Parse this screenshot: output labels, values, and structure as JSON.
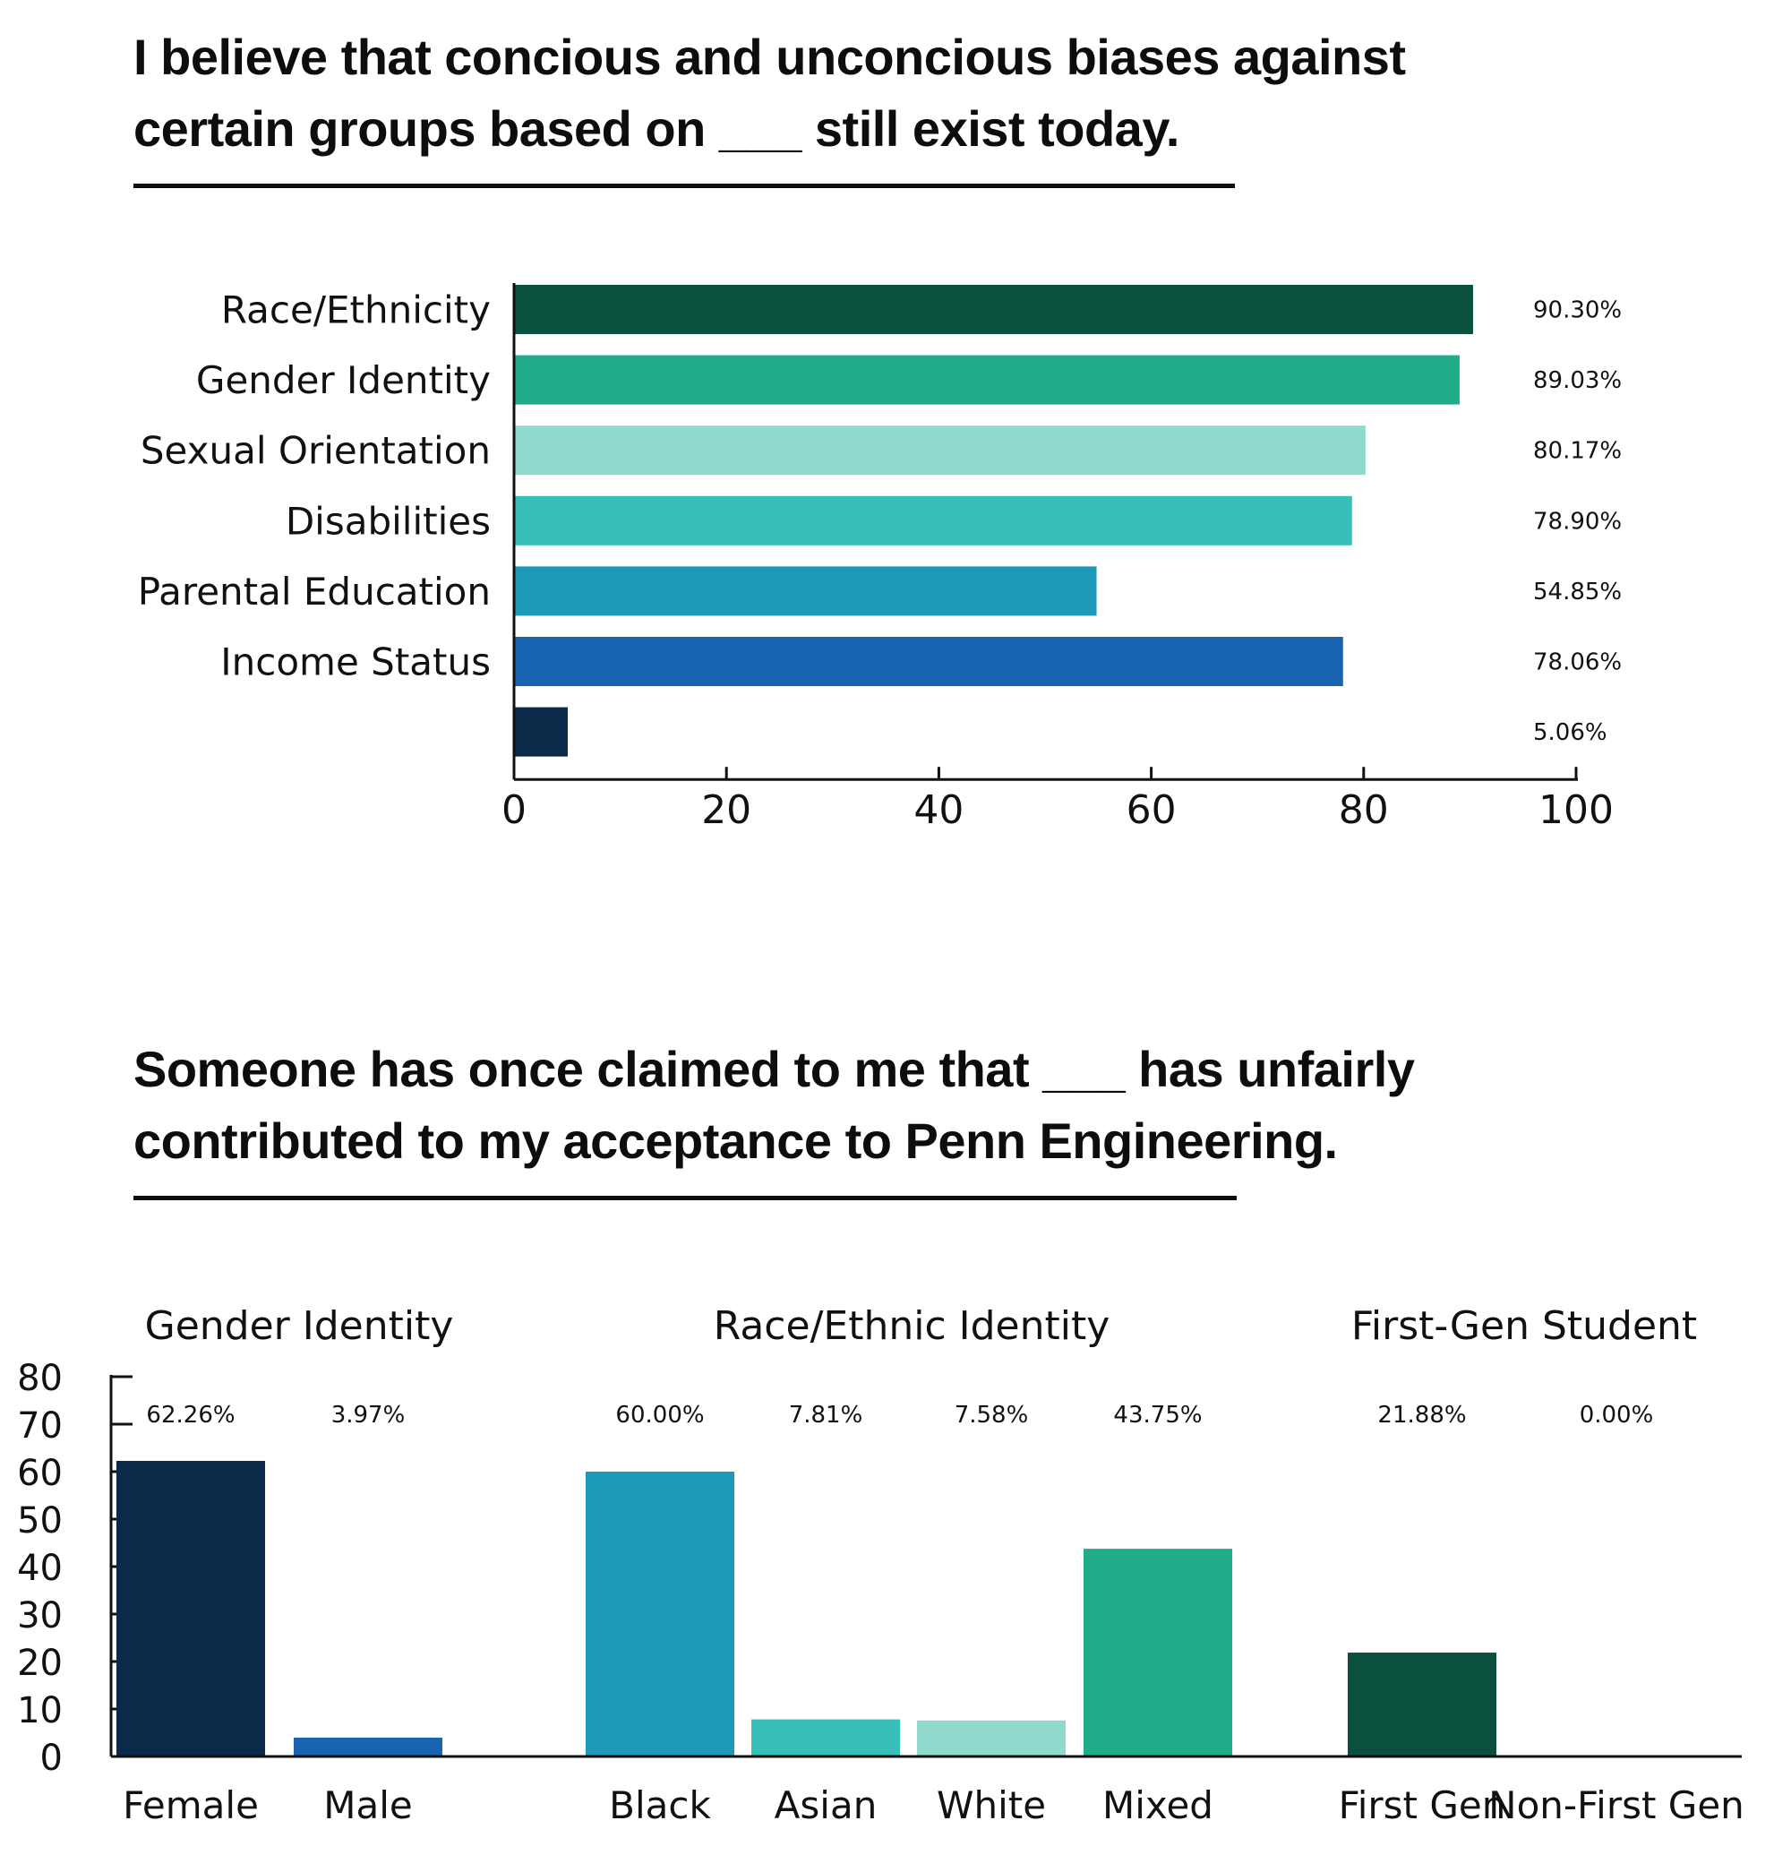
{
  "chart_data": [
    {
      "type": "bar",
      "orientation": "horizontal",
      "title_lines": [
        "I believe that concious and unconcious biases against",
        "certain groups based on ___ still exist today."
      ],
      "categories": [
        "Race/Ethnicity",
        "Gender Identity",
        "Sexual Orientation",
        "Disabilities",
        "Parental Education",
        "Income Status",
        ""
      ],
      "values": [
        90.3,
        89.03,
        80.17,
        78.9,
        54.85,
        78.06,
        5.06
      ],
      "value_labels": [
        "90.30%",
        "89.03%",
        "80.17%",
        "78.90%",
        "54.85%",
        "78.06%",
        "5.06%"
      ],
      "colors": [
        "#0b4f3f",
        "#20ac89",
        "#8fdacc",
        "#37bfba",
        "#1c98b8",
        "#1964b0",
        "#0a2a4a"
      ],
      "xlim": [
        0,
        100
      ],
      "xticks": [
        "0",
        "20",
        "40",
        "60",
        "80",
        "100"
      ],
      "xlabel": "",
      "ylabel": "",
      "grid": false
    },
    {
      "type": "bar",
      "orientation": "vertical",
      "title_lines": [
        "Someone has once claimed to me that ___ has unfairly",
        "contributed to my acceptance to Penn Engineering."
      ],
      "groups": [
        {
          "name": "Gender Identity",
          "categories": [
            "Female",
            "Male"
          ],
          "values": [
            62.26,
            3.97
          ],
          "value_labels": [
            "62.26%",
            "3.97%"
          ],
          "colors": [
            "#0a2a4a",
            "#1964b0"
          ]
        },
        {
          "name": "Race/Ethnic Identity",
          "categories": [
            "Black",
            "Asian",
            "White",
            "Mixed"
          ],
          "values": [
            60.0,
            7.81,
            7.58,
            43.75
          ],
          "value_labels": [
            "60.00%",
            "7.81%",
            "7.58%",
            "43.75%"
          ],
          "colors": [
            "#1c98b8",
            "#37bfba",
            "#8fdacc",
            "#20ac89"
          ]
        },
        {
          "name": "First-Gen Student",
          "categories": [
            "First Gen",
            "Non-First Gen"
          ],
          "values": [
            21.88,
            0.0
          ],
          "value_labels": [
            "21.88%",
            "0.00%"
          ],
          "colors": [
            "#0b4f3f",
            "#0b4f3f"
          ]
        }
      ],
      "ylim": [
        0,
        80
      ],
      "yticks": [
        "0",
        "10",
        "20",
        "30",
        "40",
        "50",
        "60",
        "70",
        "80"
      ],
      "xlabel": "",
      "ylabel": "",
      "grid": false
    }
  ]
}
